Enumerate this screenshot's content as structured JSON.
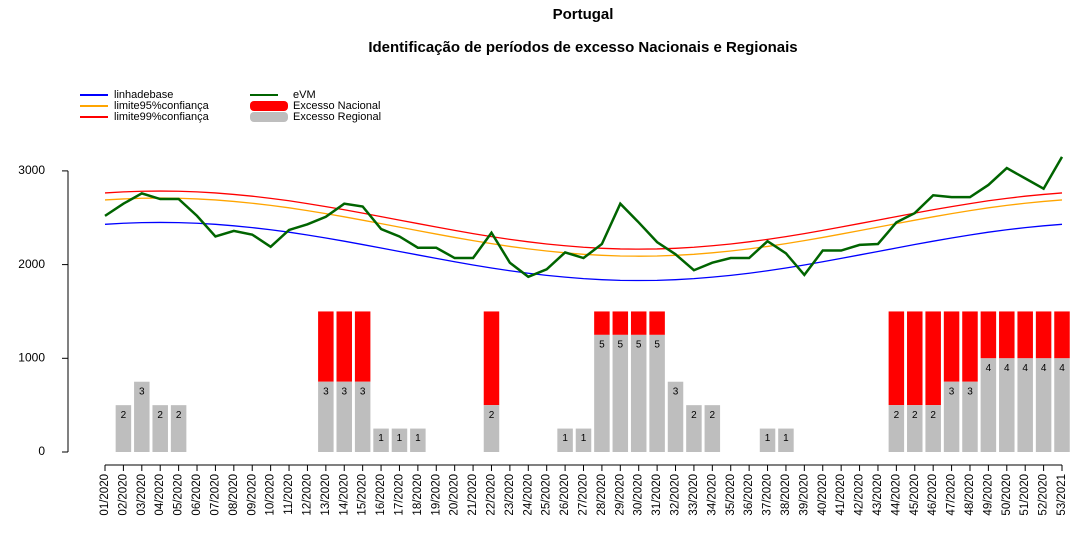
{
  "chart_data": {
    "type": "bar_line",
    "title": "Portugal",
    "subtitle": "Identificação de períodos de excesso Nacionais e Regionais",
    "categories": [
      "01/2020",
      "02/2020",
      "03/2020",
      "04/2020",
      "05/2020",
      "06/2020",
      "07/2020",
      "08/2020",
      "09/2020",
      "10/2020",
      "11/2020",
      "12/2020",
      "13/2020",
      "14/2020",
      "15/2020",
      "16/2020",
      "17/2020",
      "18/2020",
      "19/2020",
      "20/2020",
      "21/2020",
      "22/2020",
      "23/2020",
      "24/2020",
      "25/2020",
      "26/2020",
      "27/2020",
      "28/2020",
      "29/2020",
      "30/2020",
      "31/2020",
      "32/2020",
      "33/2020",
      "34/2020",
      "35/2020",
      "36/2020",
      "37/2020",
      "38/2020",
      "39/2020",
      "40/2020",
      "41/2020",
      "42/2020",
      "43/2020",
      "44/2020",
      "45/2020",
      "46/2020",
      "47/2020",
      "48/2020",
      "49/2020",
      "50/2020",
      "51/2020",
      "52/2020",
      "53/2021"
    ],
    "series": [
      {
        "name": "linhadebase",
        "type": "line",
        "color": "#0000ff",
        "values": [
          2430,
          2441,
          2448,
          2450,
          2448,
          2441,
          2430,
          2414,
          2395,
          2372,
          2346,
          2316,
          2284,
          2250,
          2214,
          2177,
          2140,
          2103,
          2066,
          2030,
          1996,
          1964,
          1934,
          1908,
          1885,
          1866,
          1850,
          1839,
          1832,
          1830,
          1832,
          1839,
          1850,
          1866,
          1885,
          1908,
          1934,
          1964,
          1996,
          2030,
          2066,
          2103,
          2140,
          2177,
          2214,
          2250,
          2284,
          2316,
          2346,
          2372,
          2395,
          2414,
          2430
        ]
      },
      {
        "name": "limite95%confiança",
        "type": "line",
        "color": "#ffa500",
        "values": [
          2690,
          2701,
          2708,
          2710,
          2708,
          2701,
          2690,
          2674,
          2655,
          2632,
          2606,
          2576,
          2544,
          2510,
          2474,
          2437,
          2400,
          2363,
          2326,
          2290,
          2256,
          2224,
          2194,
          2168,
          2145,
          2126,
          2110,
          2099,
          2092,
          2090,
          2092,
          2099,
          2110,
          2126,
          2145,
          2168,
          2194,
          2224,
          2256,
          2290,
          2326,
          2363,
          2400,
          2437,
          2474,
          2510,
          2544,
          2576,
          2606,
          2632,
          2655,
          2674,
          2690
        ]
      },
      {
        "name": "limite99%confiança",
        "type": "line",
        "color": "#ff0000",
        "values": [
          2765,
          2776,
          2783,
          2785,
          2783,
          2776,
          2765,
          2749,
          2730,
          2707,
          2681,
          2651,
          2619,
          2585,
          2549,
          2512,
          2475,
          2438,
          2401,
          2365,
          2331,
          2299,
          2269,
          2243,
          2220,
          2201,
          2185,
          2174,
          2167,
          2165,
          2167,
          2174,
          2185,
          2201,
          2220,
          2243,
          2269,
          2299,
          2331,
          2365,
          2401,
          2438,
          2475,
          2512,
          2549,
          2585,
          2619,
          2651,
          2681,
          2707,
          2730,
          2749,
          2765
        ]
      },
      {
        "name": "eVM",
        "type": "line",
        "color": "#006400",
        "values": [
          2520,
          2650,
          2760,
          2700,
          2700,
          2520,
          2300,
          2360,
          2320,
          2190,
          2370,
          2430,
          2510,
          2650,
          2620,
          2380,
          2300,
          2180,
          2180,
          2070,
          2070,
          2340,
          2020,
          1870,
          1950,
          2130,
          2070,
          2220,
          2650,
          2450,
          2240,
          2110,
          1940,
          2020,
          2070,
          2070,
          2250,
          2120,
          1890,
          2150,
          2150,
          2210,
          2220,
          2450,
          2550,
          2740,
          2720,
          2720,
          2850,
          3030,
          2920,
          2810,
          3150
        ]
      },
      {
        "name": "Excesso Nacional",
        "type": "bar",
        "color": "#ff0000",
        "values": [
          null,
          null,
          null,
          null,
          null,
          null,
          null,
          null,
          null,
          null,
          null,
          null,
          750,
          750,
          750,
          null,
          null,
          null,
          null,
          null,
          null,
          1000,
          null,
          null,
          null,
          null,
          null,
          250,
          250,
          250,
          250,
          null,
          null,
          null,
          null,
          null,
          null,
          null,
          null,
          null,
          null,
          null,
          null,
          1000,
          1000,
          1000,
          750,
          750,
          500,
          500,
          500,
          500,
          500
        ]
      },
      {
        "name": "Excesso Regional",
        "type": "bar",
        "color": "#bebebe",
        "values": [
          null,
          500,
          750,
          500,
          500,
          null,
          null,
          null,
          null,
          null,
          null,
          null,
          750,
          750,
          750,
          250,
          250,
          250,
          null,
          null,
          null,
          500,
          null,
          null,
          null,
          250,
          250,
          1250,
          1250,
          1250,
          1250,
          750,
          500,
          500,
          null,
          null,
          250,
          250,
          null,
          null,
          null,
          null,
          null,
          500,
          500,
          500,
          750,
          750,
          1000,
          1000,
          1000,
          1000,
          1000
        ],
        "counts": [
          null,
          2,
          3,
          2,
          2,
          null,
          null,
          null,
          null,
          null,
          null,
          null,
          3,
          3,
          3,
          1,
          1,
          1,
          null,
          null,
          null,
          2,
          null,
          null,
          null,
          1,
          1,
          5,
          5,
          5,
          5,
          3,
          2,
          2,
          null,
          null,
          1,
          1,
          null,
          null,
          null,
          null,
          null,
          2,
          2,
          2,
          3,
          3,
          4,
          4,
          4,
          4,
          4
        ]
      }
    ],
    "ylim": [
      0,
      3200
    ],
    "yticks": [
      0,
      1000,
      2000,
      3000
    ]
  }
}
